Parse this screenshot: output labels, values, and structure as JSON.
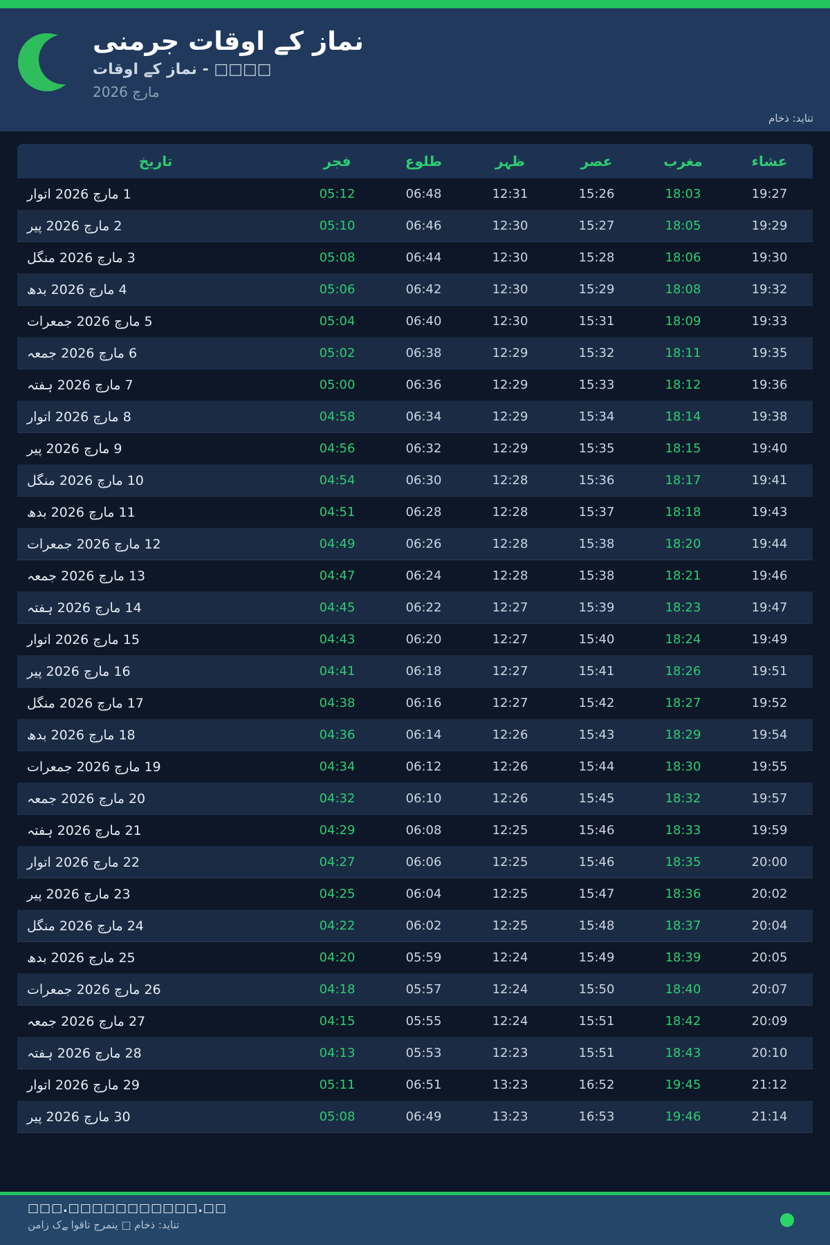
{
  "theme": {
    "accent_green": "#22c55e",
    "time_green": "#2ecc70",
    "header_bg": "#20395c",
    "page_bg": "#0d1727",
    "row_alt_bg": "#1b2b44",
    "footer_bg": "#234669"
  },
  "header": {
    "title": "نماز کے اوقات جرمنی",
    "subtitle": "□□□□ - نماز کے اوقات",
    "period": "مارچ 2026",
    "source": "ماخذ :دیانت"
  },
  "table": {
    "columns": [
      {
        "key": "date",
        "label": "تاریخ"
      },
      {
        "key": "fajr",
        "label": "فجر"
      },
      {
        "key": "sunrise",
        "label": "طلوع"
      },
      {
        "key": "zuhr",
        "label": "ظہر"
      },
      {
        "key": "asr",
        "label": "عصر"
      },
      {
        "key": "maghrib",
        "label": "مغرب"
      },
      {
        "key": "isha",
        "label": "عشاء"
      }
    ],
    "rows": [
      {
        "date": "1 مارچ 2026 اتوار",
        "fajr": "05:12",
        "sunrise": "06:48",
        "zuhr": "12:31",
        "asr": "15:26",
        "maghrib": "18:03",
        "isha": "19:27"
      },
      {
        "date": "2 مارچ 2026 پیر",
        "fajr": "05:10",
        "sunrise": "06:46",
        "zuhr": "12:30",
        "asr": "15:27",
        "maghrib": "18:05",
        "isha": "19:29"
      },
      {
        "date": "3 مارچ 2026 منگل",
        "fajr": "05:08",
        "sunrise": "06:44",
        "zuhr": "12:30",
        "asr": "15:28",
        "maghrib": "18:06",
        "isha": "19:30"
      },
      {
        "date": "4 مارچ 2026 بدھ",
        "fajr": "05:06",
        "sunrise": "06:42",
        "zuhr": "12:30",
        "asr": "15:29",
        "maghrib": "18:08",
        "isha": "19:32"
      },
      {
        "date": "5 مارچ 2026 جمعرات",
        "fajr": "05:04",
        "sunrise": "06:40",
        "zuhr": "12:30",
        "asr": "15:31",
        "maghrib": "18:09",
        "isha": "19:33"
      },
      {
        "date": "6 مارچ 2026 جمعہ",
        "fajr": "05:02",
        "sunrise": "06:38",
        "zuhr": "12:29",
        "asr": "15:32",
        "maghrib": "18:11",
        "isha": "19:35"
      },
      {
        "date": "7 مارچ 2026 ہفتہ",
        "fajr": "05:00",
        "sunrise": "06:36",
        "zuhr": "12:29",
        "asr": "15:33",
        "maghrib": "18:12",
        "isha": "19:36"
      },
      {
        "date": "8 مارچ 2026 اتوار",
        "fajr": "04:58",
        "sunrise": "06:34",
        "zuhr": "12:29",
        "asr": "15:34",
        "maghrib": "18:14",
        "isha": "19:38"
      },
      {
        "date": "9 مارچ 2026 پیر",
        "fajr": "04:56",
        "sunrise": "06:32",
        "zuhr": "12:29",
        "asr": "15:35",
        "maghrib": "18:15",
        "isha": "19:40"
      },
      {
        "date": "10 مارچ 2026 منگل",
        "fajr": "04:54",
        "sunrise": "06:30",
        "zuhr": "12:28",
        "asr": "15:36",
        "maghrib": "18:17",
        "isha": "19:41"
      },
      {
        "date": "11 مارچ 2026 بدھ",
        "fajr": "04:51",
        "sunrise": "06:28",
        "zuhr": "12:28",
        "asr": "15:37",
        "maghrib": "18:18",
        "isha": "19:43"
      },
      {
        "date": "12 مارچ 2026 جمعرات",
        "fajr": "04:49",
        "sunrise": "06:26",
        "zuhr": "12:28",
        "asr": "15:38",
        "maghrib": "18:20",
        "isha": "19:44"
      },
      {
        "date": "13 مارچ 2026 جمعہ",
        "fajr": "04:47",
        "sunrise": "06:24",
        "zuhr": "12:28",
        "asr": "15:38",
        "maghrib": "18:21",
        "isha": "19:46"
      },
      {
        "date": "14 مارچ 2026 ہفتہ",
        "fajr": "04:45",
        "sunrise": "06:22",
        "zuhr": "12:27",
        "asr": "15:39",
        "maghrib": "18:23",
        "isha": "19:47"
      },
      {
        "date": "15 مارچ 2026 اتوار",
        "fajr": "04:43",
        "sunrise": "06:20",
        "zuhr": "12:27",
        "asr": "15:40",
        "maghrib": "18:24",
        "isha": "19:49"
      },
      {
        "date": "16 مارچ 2026 پیر",
        "fajr": "04:41",
        "sunrise": "06:18",
        "zuhr": "12:27",
        "asr": "15:41",
        "maghrib": "18:26",
        "isha": "19:51"
      },
      {
        "date": "17 مارچ 2026 منگل",
        "fajr": "04:38",
        "sunrise": "06:16",
        "zuhr": "12:27",
        "asr": "15:42",
        "maghrib": "18:27",
        "isha": "19:52"
      },
      {
        "date": "18 مارچ 2026 بدھ",
        "fajr": "04:36",
        "sunrise": "06:14",
        "zuhr": "12:26",
        "asr": "15:43",
        "maghrib": "18:29",
        "isha": "19:54"
      },
      {
        "date": "19 مارچ 2026 جمعرات",
        "fajr": "04:34",
        "sunrise": "06:12",
        "zuhr": "12:26",
        "asr": "15:44",
        "maghrib": "18:30",
        "isha": "19:55"
      },
      {
        "date": "20 مارچ 2026 جمعہ",
        "fajr": "04:32",
        "sunrise": "06:10",
        "zuhr": "12:26",
        "asr": "15:45",
        "maghrib": "18:32",
        "isha": "19:57"
      },
      {
        "date": "21 مارچ 2026 ہفتہ",
        "fajr": "04:29",
        "sunrise": "06:08",
        "zuhr": "12:25",
        "asr": "15:46",
        "maghrib": "18:33",
        "isha": "19:59"
      },
      {
        "date": "22 مارچ 2026 اتوار",
        "fajr": "04:27",
        "sunrise": "06:06",
        "zuhr": "12:25",
        "asr": "15:46",
        "maghrib": "18:35",
        "isha": "20:00"
      },
      {
        "date": "23 مارچ 2026 پیر",
        "fajr": "04:25",
        "sunrise": "06:04",
        "zuhr": "12:25",
        "asr": "15:47",
        "maghrib": "18:36",
        "isha": "20:02"
      },
      {
        "date": "24 مارچ 2026 منگل",
        "fajr": "04:22",
        "sunrise": "06:02",
        "zuhr": "12:25",
        "asr": "15:48",
        "maghrib": "18:37",
        "isha": "20:04"
      },
      {
        "date": "25 مارچ 2026 بدھ",
        "fajr": "04:20",
        "sunrise": "05:59",
        "zuhr": "12:24",
        "asr": "15:49",
        "maghrib": "18:39",
        "isha": "20:05"
      },
      {
        "date": "26 مارچ 2026 جمعرات",
        "fajr": "04:18",
        "sunrise": "05:57",
        "zuhr": "12:24",
        "asr": "15:50",
        "maghrib": "18:40",
        "isha": "20:07"
      },
      {
        "date": "27 مارچ 2026 جمعہ",
        "fajr": "04:15",
        "sunrise": "05:55",
        "zuhr": "12:24",
        "asr": "15:51",
        "maghrib": "18:42",
        "isha": "20:09"
      },
      {
        "date": "28 مارچ 2026 ہفتہ",
        "fajr": "04:13",
        "sunrise": "05:53",
        "zuhr": "12:23",
        "asr": "15:51",
        "maghrib": "18:43",
        "isha": "20:10"
      },
      {
        "date": "29 مارچ 2026 اتوار",
        "fajr": "05:11",
        "sunrise": "06:51",
        "zuhr": "13:23",
        "asr": "16:52",
        "maghrib": "19:45",
        "isha": "21:12"
      },
      {
        "date": "30 مارچ 2026 پیر",
        "fajr": "05:08",
        "sunrise": "06:49",
        "zuhr": "13:23",
        "asr": "16:53",
        "maghrib": "19:46",
        "isha": "21:14"
      }
    ]
  },
  "footer": {
    "website": "□□□.□□□□□□□□□□□.□□",
    "tagline": "نماز کے اوقات جرمنی □ ماخذ :دیانت"
  }
}
